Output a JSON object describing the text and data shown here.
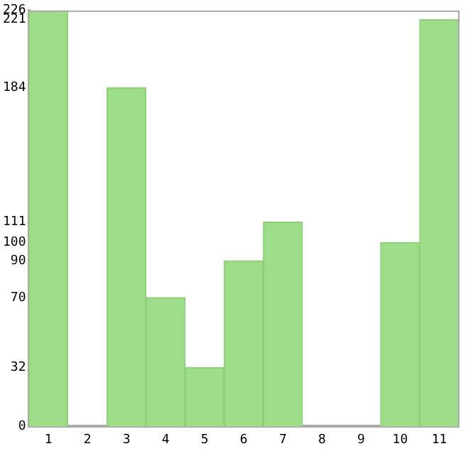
{
  "chart_data": {
    "type": "bar",
    "categories": [
      "1",
      "2",
      "3",
      "4",
      "5",
      "6",
      "7",
      "8",
      "9",
      "10",
      "11"
    ],
    "values": [
      226,
      0,
      184,
      70,
      32,
      90,
      111,
      0,
      0,
      100,
      221
    ],
    "color": "#9ddc88",
    "ylim": [
      0,
      226
    ],
    "yticks": [
      0,
      32,
      70,
      90,
      100,
      111,
      184,
      221,
      226
    ],
    "grid": false
  }
}
